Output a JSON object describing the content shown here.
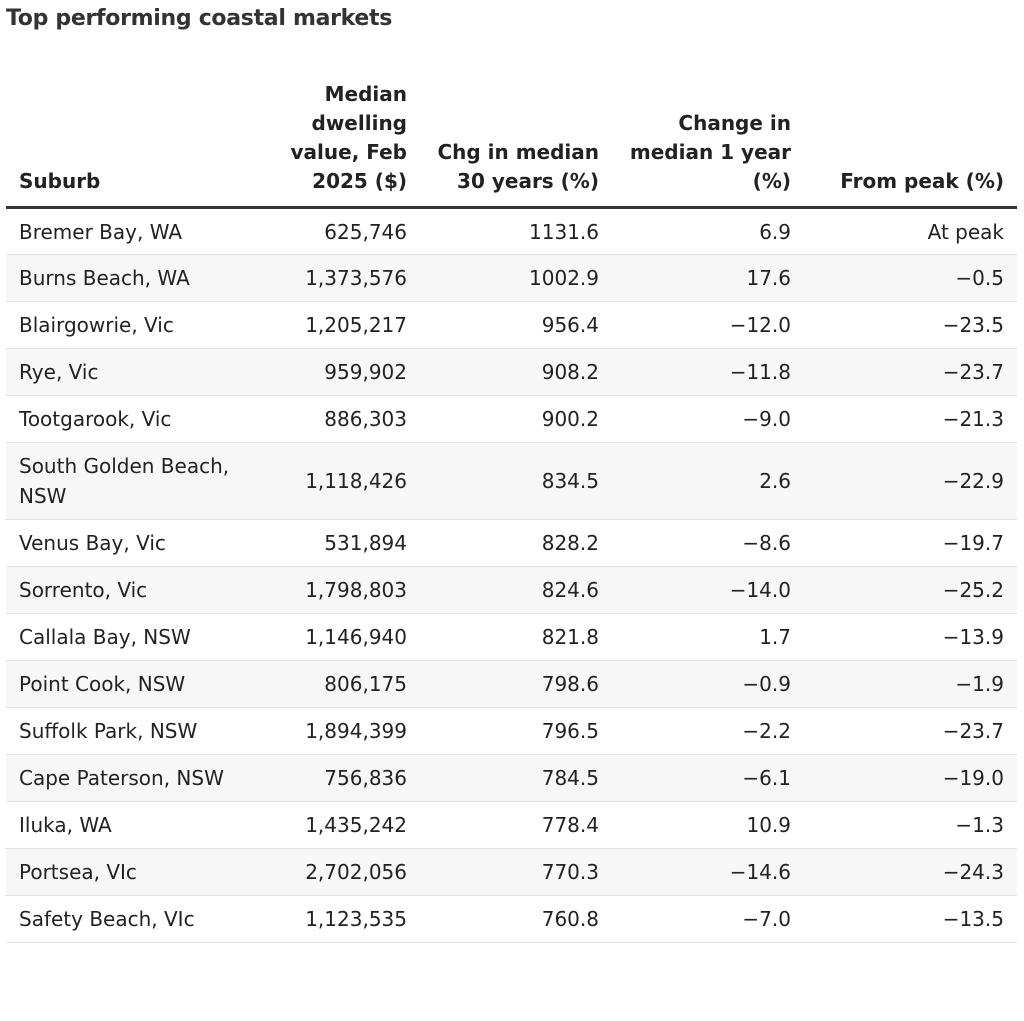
{
  "title": "Top performing coastal markets",
  "chart_data": {
    "type": "table",
    "title": "Top performing coastal markets",
    "columns": [
      "Suburb",
      "Median dwelling value, Feb 2025 ($)",
      "Chg in median 30 years (%)",
      "Change in median 1 year (%)",
      "From peak (%)"
    ],
    "rows": [
      [
        "Bremer Bay, WA",
        "625,746",
        "1131.6",
        "6.9",
        "At peak"
      ],
      [
        "Burns Beach, WA",
        "1,373,576",
        "1002.9",
        "17.6",
        "−0.5"
      ],
      [
        "Blairgowrie, Vic",
        "1,205,217",
        "956.4",
        "−12.0",
        "−23.5"
      ],
      [
        "Rye, Vic",
        "959,902",
        "908.2",
        "−11.8",
        "−23.7"
      ],
      [
        "Tootgarook, Vic",
        "886,303",
        "900.2",
        "−9.0",
        "−21.3"
      ],
      [
        "South Golden Beach, NSW",
        "1,118,426",
        "834.5",
        "2.6",
        "−22.9"
      ],
      [
        "Venus Bay, Vic",
        "531,894",
        "828.2",
        "−8.6",
        "−19.7"
      ],
      [
        "Sorrento, Vic",
        "1,798,803",
        "824.6",
        "−14.0",
        "−25.2"
      ],
      [
        "Callala Bay, NSW",
        "1,146,940",
        "821.8",
        "1.7",
        "−13.9"
      ],
      [
        "Point Cook, NSW",
        "806,175",
        "798.6",
        "−0.9",
        "−1.9"
      ],
      [
        "Suffolk Park, NSW",
        "1,894,399",
        "796.5",
        "−2.2",
        "−23.7"
      ],
      [
        "Cape Paterson, NSW",
        "756,836",
        "784.5",
        "−6.1",
        "−19.0"
      ],
      [
        "Iluka, WA",
        "1,435,242",
        "778.4",
        "10.9",
        "−1.3"
      ],
      [
        "Portsea, VIc",
        "2,702,056",
        "770.3",
        "−14.6",
        "−24.3"
      ],
      [
        "Safety Beach, VIc",
        "1,123,535",
        "760.8",
        "−7.0",
        "−13.5"
      ]
    ]
  }
}
